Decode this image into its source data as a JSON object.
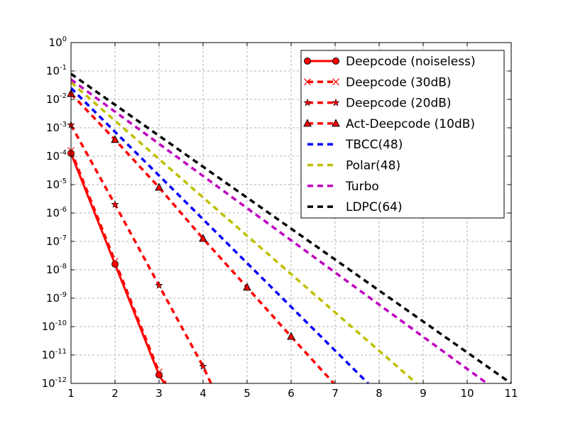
{
  "chart_data": {
    "type": "line",
    "title": "",
    "xlabel": "",
    "ylabel": "",
    "x_range": [
      1,
      11
    ],
    "y_range_log10": [
      -12,
      0
    ],
    "y_scale": "log",
    "grid": true,
    "legend_position": "upper-right",
    "x_ticks": [
      "1",
      "2",
      "3",
      "4",
      "5",
      "6",
      "7",
      "8",
      "9",
      "10",
      "11"
    ],
    "y_ticks": [
      {
        "base": "10",
        "exp": "0"
      },
      {
        "base": "10",
        "exp": "-1"
      },
      {
        "base": "10",
        "exp": "-2"
      },
      {
        "base": "10",
        "exp": "-3"
      },
      {
        "base": "10",
        "exp": "-4"
      },
      {
        "base": "10",
        "exp": "-5"
      },
      {
        "base": "10",
        "exp": "-6"
      },
      {
        "base": "10",
        "exp": "-7"
      },
      {
        "base": "10",
        "exp": "-8"
      },
      {
        "base": "10",
        "exp": "-9"
      },
      {
        "base": "10",
        "exp": "-10"
      },
      {
        "base": "10",
        "exp": "-11"
      },
      {
        "base": "10",
        "exp": "-12"
      }
    ],
    "series": [
      {
        "name": "Deepcode (noiseless)",
        "color": "#ff0000",
        "style": "solid",
        "marker": "circle",
        "x": [
          1,
          2,
          3,
          3.12
        ],
        "log10y": [
          -3.9,
          -7.8,
          -11.7,
          -12.0
        ],
        "marker_x": [
          1,
          2,
          3
        ]
      },
      {
        "name": "Deepcode (30dB)",
        "color": "#ff0000",
        "style": "dashed",
        "marker": "x",
        "x": [
          1,
          2,
          3,
          3.15
        ],
        "log10y": [
          -3.8,
          -7.7,
          -11.6,
          -12.0
        ],
        "marker_x": [
          1,
          2,
          3
        ]
      },
      {
        "name": "Deepcode (20dB)",
        "color": "#ff0000",
        "style": "dashed",
        "marker": "star",
        "x": [
          1,
          2,
          3,
          4,
          4.18
        ],
        "log10y": [
          -2.9,
          -5.7,
          -8.55,
          -11.4,
          -12.0
        ],
        "marker_x": [
          1,
          2,
          3,
          4
        ]
      },
      {
        "name": "Act-Deepcode (10dB)",
        "color": "#ff0000",
        "style": "dashed",
        "marker": "triangle",
        "x": [
          1,
          2,
          3,
          4,
          5,
          6,
          7
        ],
        "log10y": [
          -1.8,
          -3.42,
          -5.1,
          -6.9,
          -8.62,
          -10.35,
          -12.05
        ],
        "marker_x": [
          1,
          2,
          3,
          4,
          5,
          6
        ]
      },
      {
        "name": "TBCC(48)",
        "color": "#0000ff",
        "style": "dashed",
        "marker": "none",
        "x": [
          1,
          7.75
        ],
        "log10y": [
          -1.6,
          -12.0
        ],
        "marker_x": []
      },
      {
        "name": "Polar(48)",
        "color": "#bfbf00",
        "style": "dashed",
        "marker": "none",
        "x": [
          1,
          8.85
        ],
        "log10y": [
          -1.4,
          -12.0
        ],
        "marker_x": []
      },
      {
        "name": "Turbo",
        "color": "#bf00bf",
        "style": "dashed",
        "marker": "none",
        "x": [
          1,
          10.45
        ],
        "log10y": [
          -1.3,
          -12.0
        ],
        "marker_x": []
      },
      {
        "name": "LDPC(64)",
        "color": "#000000",
        "style": "dashed",
        "marker": "none",
        "x": [
          1,
          11
        ],
        "log10y": [
          -1.1,
          -12.0
        ],
        "marker_x": []
      }
    ]
  }
}
